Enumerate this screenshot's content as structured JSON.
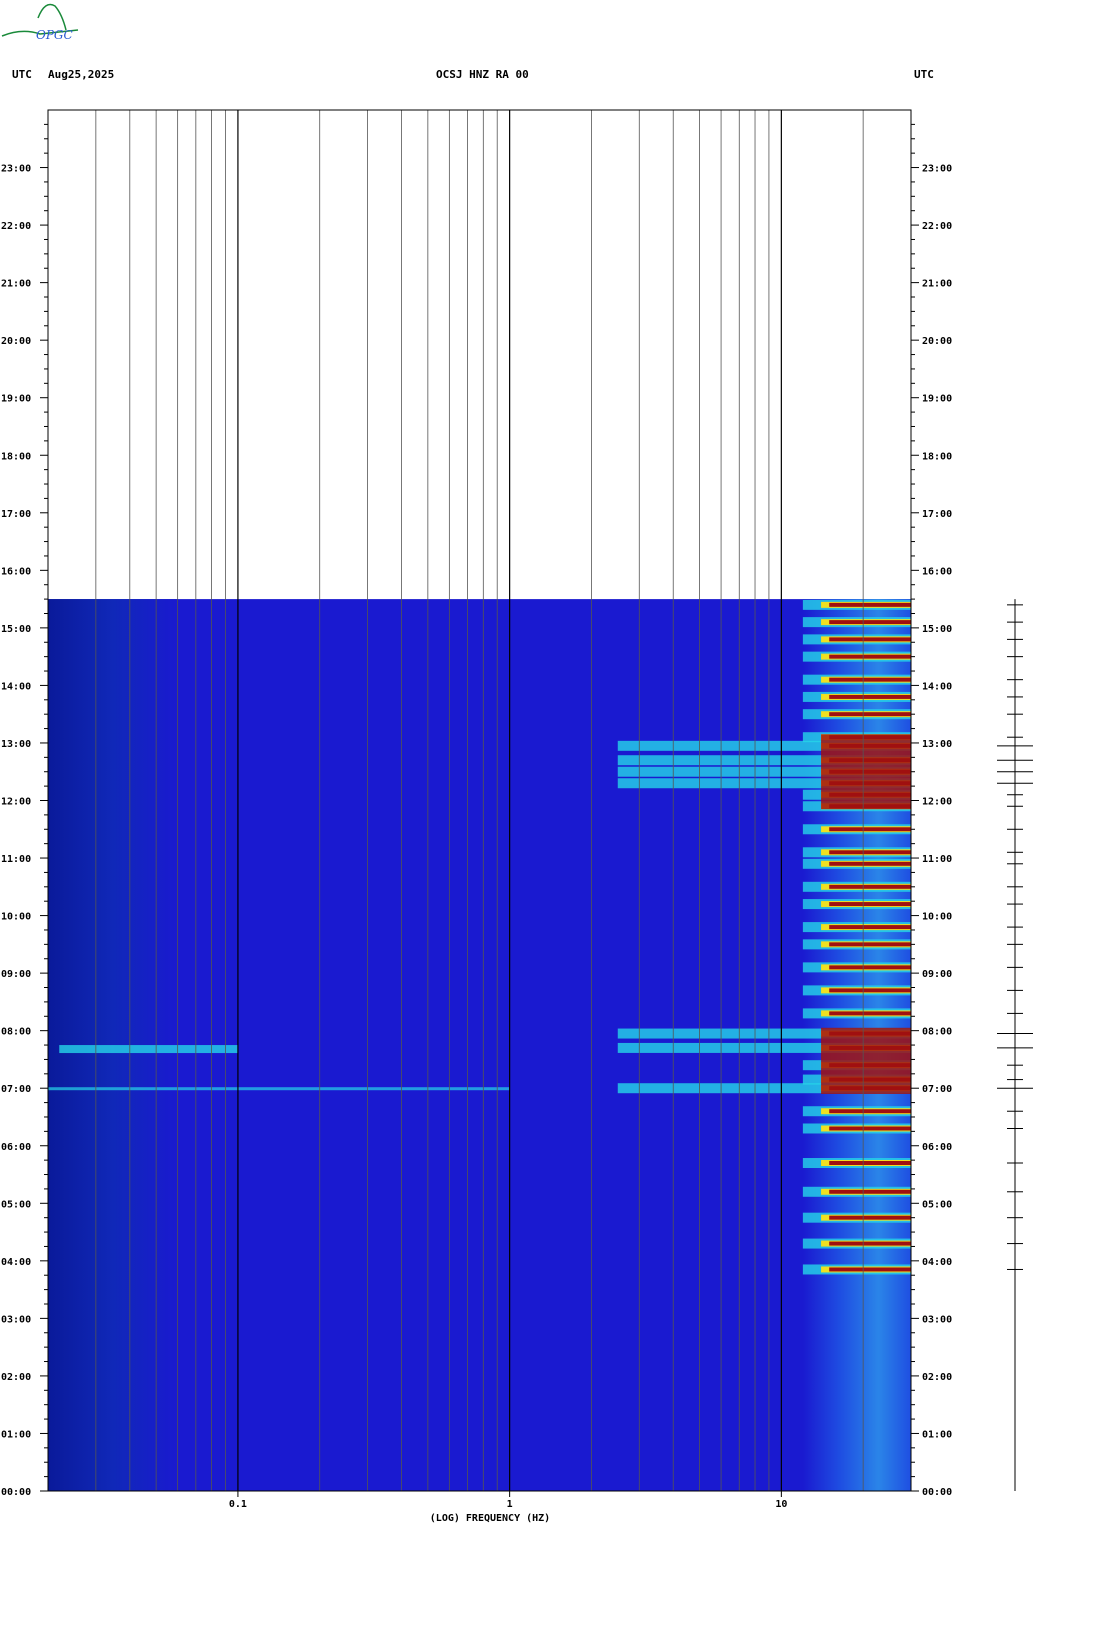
{
  "header": {
    "left_tz": "UTC",
    "date": "Aug25,2025",
    "station": "OCSJ HNZ RA 00",
    "right_tz": "UTC",
    "logo_text": "OPGC"
  },
  "colors": {
    "background_blue": "#1a1ad0",
    "low": "#0a1a9a",
    "mid_cyan": "#26d6e8",
    "high_yellow": "#f0e020",
    "peak_red": "#a01010",
    "grid": "#555555",
    "decade_grid": "#000000"
  },
  "chart_data": {
    "type": "heatmap",
    "title": "OCSJ HNZ RA 00",
    "xlabel": "(LOG) FREQUENCY (HZ)",
    "ylabel": "UTC",
    "x_scale": "log",
    "xlim": [
      0.02,
      30
    ],
    "x_ticks": [
      {
        "value": 0.1,
        "label": "0.1"
      },
      {
        "value": 1,
        "label": "1"
      },
      {
        "value": 10,
        "label": "10"
      }
    ],
    "ylim_hours": [
      0,
      24
    ],
    "y_ticks": [
      "00:00",
      "01:00",
      "02:00",
      "03:00",
      "04:00",
      "05:00",
      "06:00",
      "07:00",
      "08:00",
      "09:00",
      "10:00",
      "11:00",
      "12:00",
      "13:00",
      "14:00",
      "15:00",
      "16:00",
      "17:00",
      "18:00",
      "19:00",
      "20:00",
      "21:00",
      "22:00",
      "23:00"
    ],
    "data_end_hour": 15.5,
    "noise_band_hz": [
      12,
      30
    ],
    "events_hours": [
      3.85,
      4.3,
      4.75,
      5.2,
      5.7,
      6.3,
      6.6,
      7.0,
      7.15,
      7.4,
      7.7,
      7.95,
      8.3,
      8.7,
      9.1,
      9.5,
      9.8,
      10.2,
      10.5,
      10.9,
      11.1,
      11.5,
      11.9,
      12.1,
      12.3,
      12.5,
      12.7,
      12.95,
      13.1,
      13.5,
      13.8,
      14.1,
      14.5,
      14.8,
      15.1,
      15.4
    ],
    "strong_hours": [
      12.0,
      12.3,
      12.5,
      12.7,
      12.95,
      7.0,
      7.2,
      7.7,
      7.95
    ]
  }
}
